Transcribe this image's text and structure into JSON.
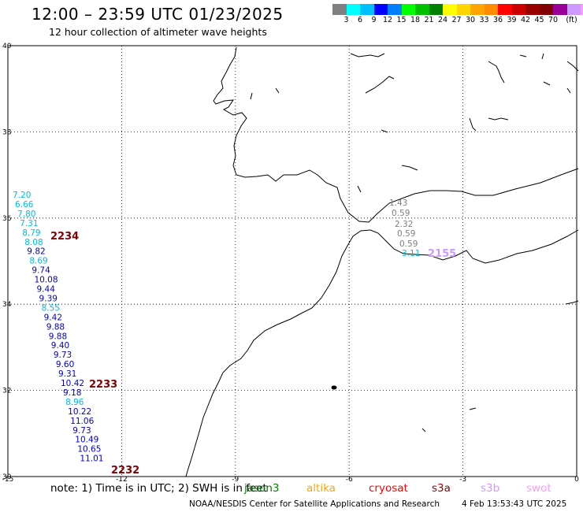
{
  "header": {
    "title": "12:00 – 23:59 UTC 01/23/2025",
    "subtitle": "12 hour collection of altimeter wave heights"
  },
  "scale": {
    "colors": [
      "#808080",
      "#00ffff",
      "#00bfff",
      "#0000ff",
      "#0080ff",
      "#00ff00",
      "#00c000",
      "#008000",
      "#ffff00",
      "#ffd700",
      "#ffa500",
      "#ff8c00",
      "#ff0000",
      "#cc0000",
      "#990000",
      "#800000",
      "#990099",
      "#cc99ff",
      "#ff99ff",
      "#000000"
    ],
    "labels": [
      "3",
      "6",
      "9",
      "12",
      "15",
      "18",
      "21",
      "24",
      "27",
      "30",
      "33",
      "36",
      "39",
      "42",
      "45",
      "70"
    ],
    "unit": "(ft)"
  },
  "axes": {
    "x_ticks": [
      "-15",
      "-12",
      "-9",
      "-6",
      "-3",
      "0"
    ],
    "y_ticks": [
      "40",
      "38",
      "36",
      "34",
      "32",
      "30"
    ]
  },
  "observations": [
    {
      "v": "7.20",
      "c": "#00bbdd"
    },
    {
      "v": "6.66",
      "c": "#00bbdd"
    },
    {
      "v": "7.80",
      "c": "#00bbdd"
    },
    {
      "v": "7.31",
      "c": "#00bbdd"
    },
    {
      "v": "8.79",
      "c": "#00bbdd"
    },
    {
      "v": "8.08",
      "c": "#00bbdd"
    },
    {
      "v": "9.82",
      "c": "#0000cc"
    },
    {
      "v": "8.69",
      "c": "#00bbdd"
    },
    {
      "v": "9.74",
      "c": "#0000cc"
    },
    {
      "v": "10.08",
      "c": "#0000cc"
    },
    {
      "v": "9.44",
      "c": "#0000cc"
    },
    {
      "v": "9.39",
      "c": "#0000cc"
    },
    {
      "v": "8.55",
      "c": "#00bbdd"
    },
    {
      "v": "9.42",
      "c": "#0000cc"
    },
    {
      "v": "9.88",
      "c": "#0000cc"
    },
    {
      "v": "9.88",
      "c": "#0000cc"
    },
    {
      "v": "9.40",
      "c": "#0000cc"
    },
    {
      "v": "9.73",
      "c": "#0000cc"
    },
    {
      "v": "9.60",
      "c": "#0000cc"
    },
    {
      "v": "9.31",
      "c": "#0000cc"
    },
    {
      "v": "10.42",
      "c": "#0000cc"
    },
    {
      "v": "9.18",
      "c": "#0000cc"
    },
    {
      "v": "8.96",
      "c": "#00bbdd"
    },
    {
      "v": "10.22",
      "c": "#0000cc"
    },
    {
      "v": "11.06",
      "c": "#0000cc"
    },
    {
      "v": "9.73",
      "c": "#0000cc"
    },
    {
      "v": "10.49",
      "c": "#0000cc"
    },
    {
      "v": "10.65",
      "c": "#0000cc"
    },
    {
      "v": "11.01",
      "c": "#0000cc"
    }
  ],
  "passes": [
    {
      "label": "2234",
      "c": "#800000"
    },
    {
      "label": "2233",
      "c": "#800000"
    },
    {
      "label": "2232",
      "c": "#800000"
    }
  ],
  "med_obs": [
    {
      "v": "1.43",
      "c": "#808080"
    },
    {
      "v": "0.59",
      "c": "#808080"
    },
    {
      "v": "2.32",
      "c": "#808080"
    },
    {
      "v": "0.59",
      "c": "#808080"
    },
    {
      "v": "0.59",
      "c": "#808080"
    },
    {
      "v": "3.11",
      "c": "#00bbdd"
    }
  ],
  "med_pass": {
    "label": "2155",
    "c": "#cc99ff"
  },
  "note": "note: 1) Time is in UTC; 2) SWH is in feet",
  "satellites": [
    {
      "name": "jason3",
      "c": "#008000"
    },
    {
      "name": "altika",
      "c": "#ffa500"
    },
    {
      "name": "cryosat",
      "c": "#ff0000"
    },
    {
      "name": "s3a",
      "c": "#990000"
    },
    {
      "name": "s3b",
      "c": "#cc99ff"
    },
    {
      "name": "swot",
      "c": "#ff99ff"
    }
  ],
  "footer": {
    "credit": "NOAA/NESDIS Center for Satellite Applications and Research",
    "timestamp": "4 Feb 13:53:43 UTC 2025"
  }
}
